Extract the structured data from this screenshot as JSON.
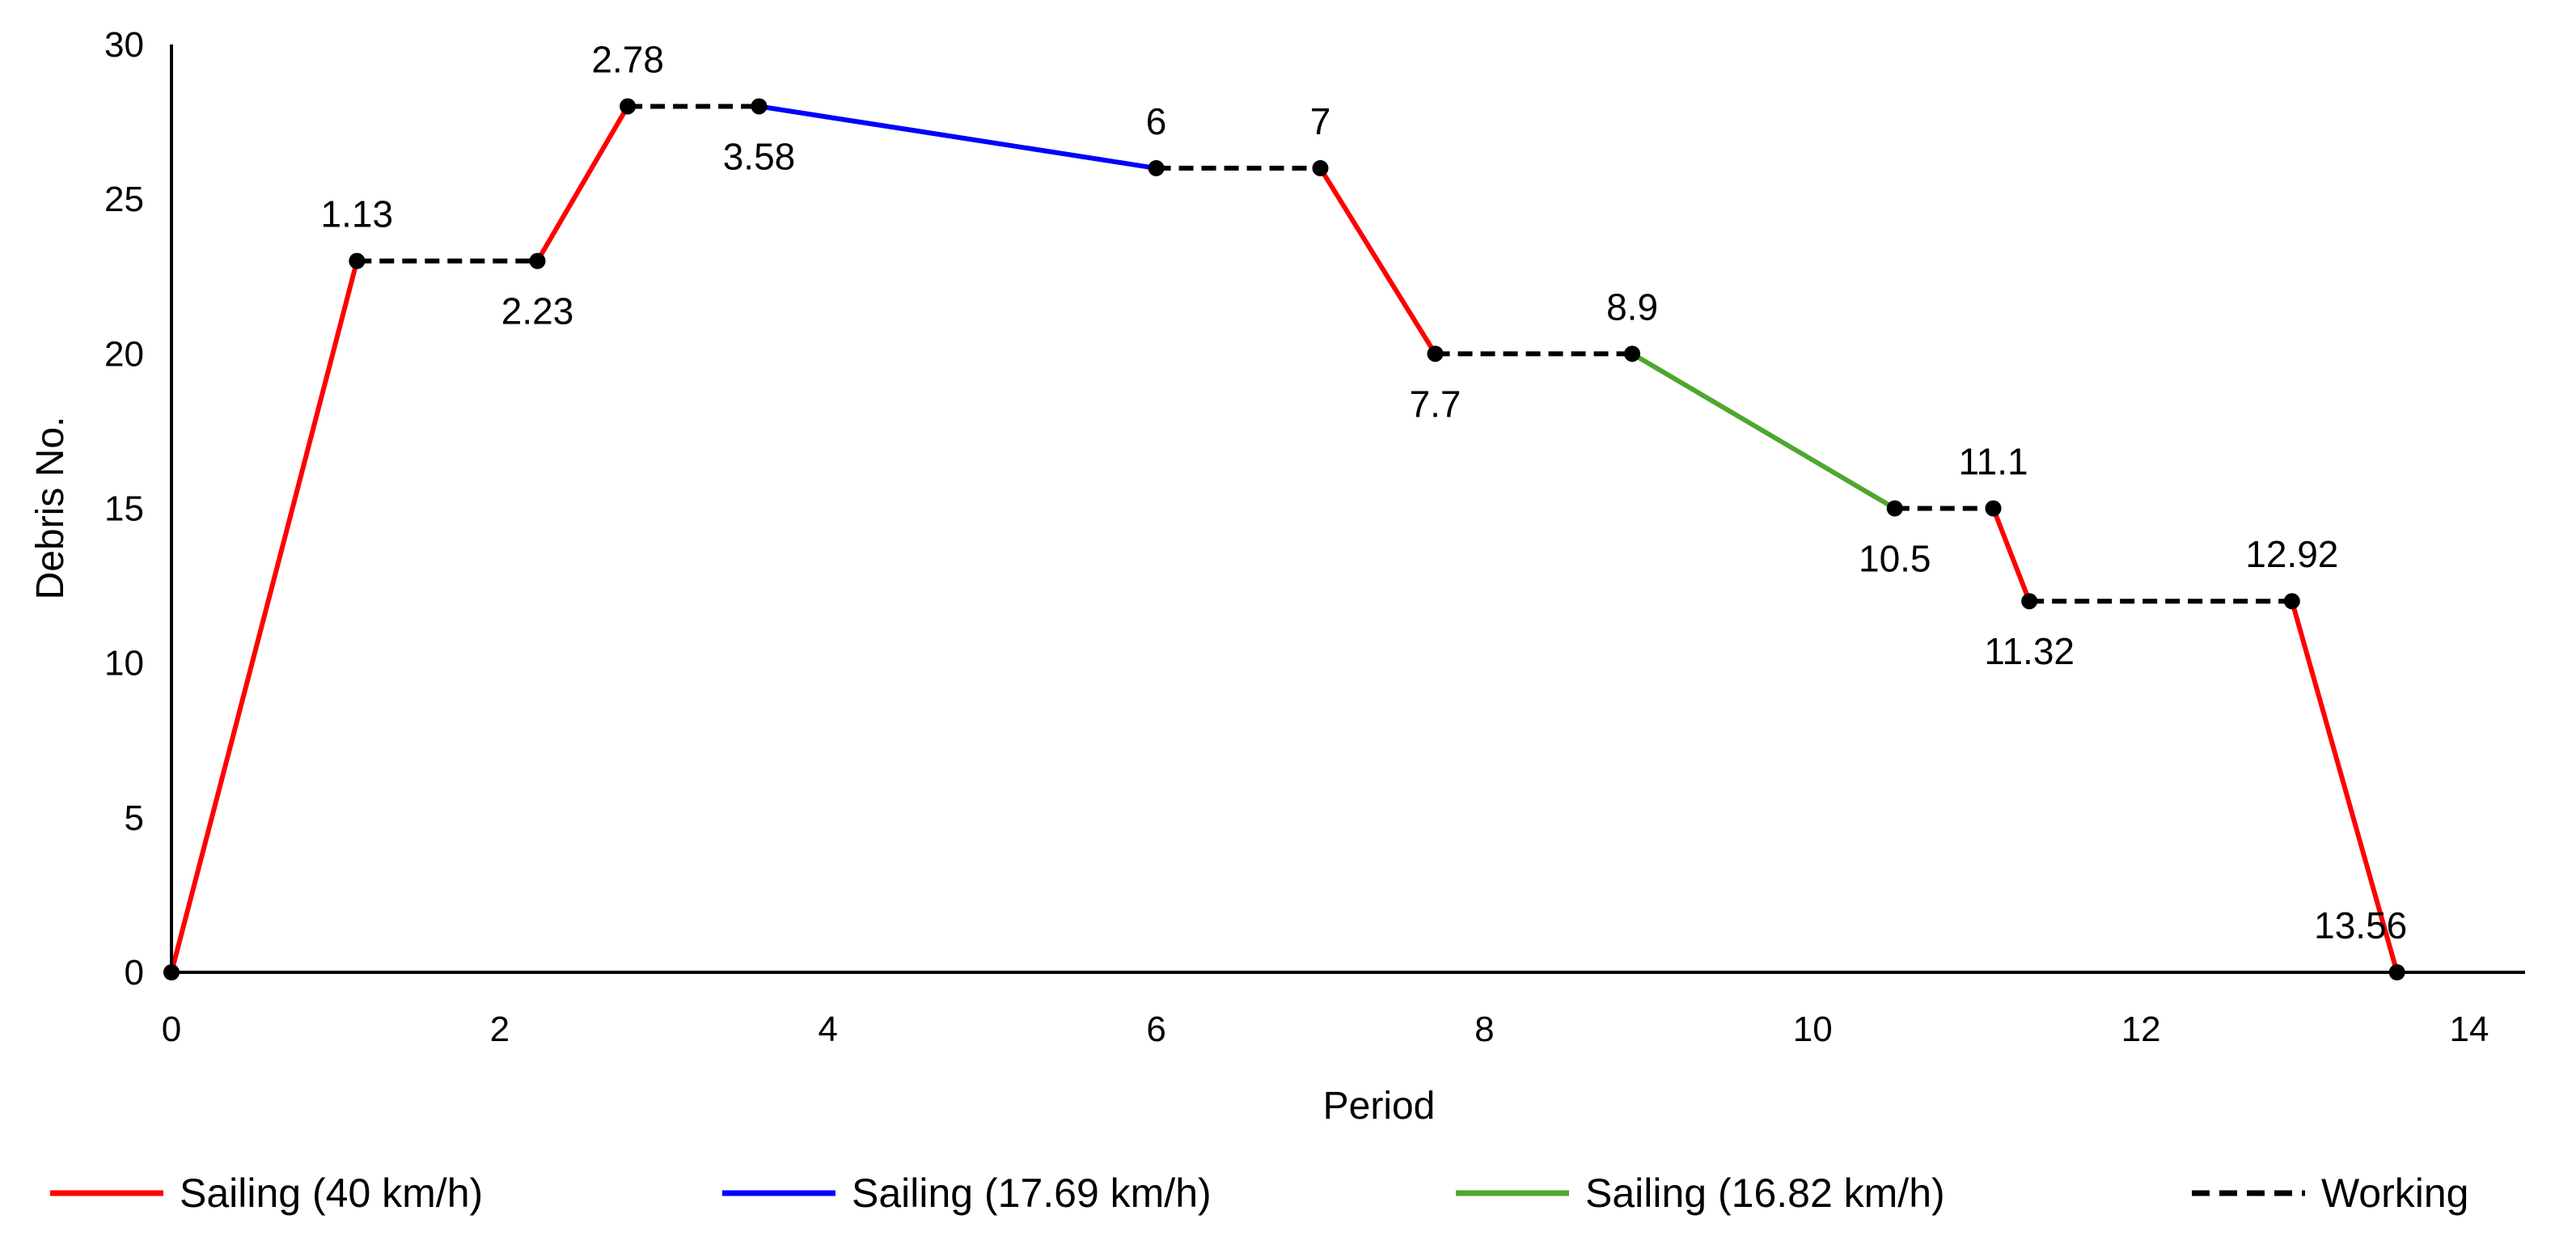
{
  "chart_data": {
    "type": "line",
    "title": "",
    "xlabel": "Period",
    "ylabel": "Debris No.",
    "xlim": [
      0,
      14
    ],
    "ylim": [
      0,
      30
    ],
    "xticks": [
      0,
      2,
      4,
      6,
      8,
      10,
      12,
      14
    ],
    "yticks": [
      0,
      5,
      10,
      15,
      20,
      25,
      30
    ],
    "grid": false,
    "legend_position": "bottom",
    "points": [
      {
        "x": 0,
        "y": 0,
        "label": ""
      },
      {
        "x": 1.13,
        "y": 23,
        "label": "1.13",
        "label_pos": "above"
      },
      {
        "x": 2.23,
        "y": 23,
        "label": "2.23",
        "label_pos": "below"
      },
      {
        "x": 2.78,
        "y": 28,
        "label": "2.78",
        "label_pos": "above"
      },
      {
        "x": 3.58,
        "y": 28,
        "label": "3.58",
        "label_pos": "below"
      },
      {
        "x": 6,
        "y": 26,
        "label": "6",
        "label_pos": "above"
      },
      {
        "x": 7,
        "y": 26,
        "label": "7",
        "label_pos": "above"
      },
      {
        "x": 7.7,
        "y": 20,
        "label": "7.7",
        "label_pos": "below"
      },
      {
        "x": 8.9,
        "y": 20,
        "label": "8.9",
        "label_pos": "above"
      },
      {
        "x": 10.5,
        "y": 15,
        "label": "10.5",
        "label_pos": "below"
      },
      {
        "x": 11.1,
        "y": 15,
        "label": "11.1",
        "label_pos": "above"
      },
      {
        "x": 11.32,
        "y": 12,
        "label": "11.32",
        "label_pos": "below"
      },
      {
        "x": 12.92,
        "y": 12,
        "label": "12.92",
        "label_pos": "above"
      },
      {
        "x": 13.56,
        "y": 0,
        "label": "13.56",
        "label_pos": "above-left"
      }
    ],
    "segments": [
      {
        "from": 0,
        "to": 1,
        "series": "sail40"
      },
      {
        "from": 1,
        "to": 2,
        "series": "working"
      },
      {
        "from": 2,
        "to": 3,
        "series": "sail40"
      },
      {
        "from": 3,
        "to": 4,
        "series": "working"
      },
      {
        "from": 4,
        "to": 5,
        "series": "sail1769"
      },
      {
        "from": 5,
        "to": 6,
        "series": "working"
      },
      {
        "from": 6,
        "to": 7,
        "series": "sail40"
      },
      {
        "from": 7,
        "to": 8,
        "series": "working"
      },
      {
        "from": 8,
        "to": 9,
        "series": "sail1682"
      },
      {
        "from": 9,
        "to": 10,
        "series": "working"
      },
      {
        "from": 10,
        "to": 11,
        "series": "sail40"
      },
      {
        "from": 11,
        "to": 12,
        "series": "working"
      },
      {
        "from": 12,
        "to": 13,
        "series": "sail40"
      }
    ],
    "series": [
      {
        "id": "sail40",
        "name": "Sailing (40 km/h)",
        "color": "#ff0000",
        "style": "solid"
      },
      {
        "id": "sail1769",
        "name": "Sailing (17.69 km/h)",
        "color": "#0000ff",
        "style": "solid"
      },
      {
        "id": "sail1682",
        "name": "Sailing (16.82 km/h)",
        "color": "#4ea72e",
        "style": "solid"
      },
      {
        "id": "working",
        "name": "Working",
        "color": "#000000",
        "style": "dashed"
      }
    ]
  }
}
